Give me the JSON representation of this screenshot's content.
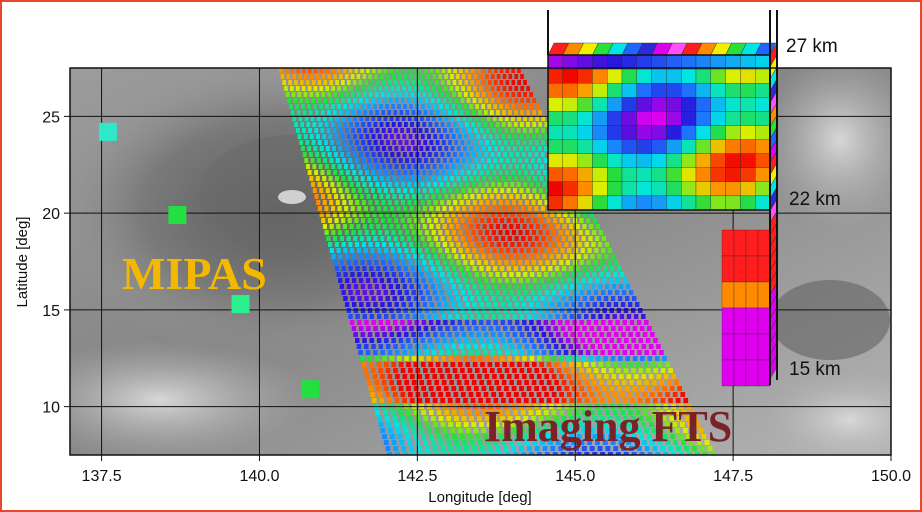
{
  "figure": {
    "x_axis": {
      "label": "Longitude [deg]",
      "range": [
        137.0,
        150.0
      ],
      "ticks": [
        "137.5",
        "140.0",
        "142.5",
        "145.0",
        "147.5",
        "150.0"
      ]
    },
    "y_axis": {
      "label": "Latitude [deg]",
      "range": [
        7.5,
        27.5
      ],
      "ticks": [
        "10",
        "15",
        "20",
        "25"
      ]
    },
    "labels": {
      "mipas": "MIPAS",
      "imaging_fts": "Imaging FTS",
      "alt_top": "27 km",
      "alt_mid": "22 km",
      "alt_low": "15 km"
    },
    "mipas_points": [
      {
        "lon": 137.6,
        "lat": 24.2,
        "color": "#2fe8c8"
      },
      {
        "lon": 138.7,
        "lat": 19.9,
        "color": "#22e040"
      },
      {
        "lon": 139.7,
        "lat": 15.3,
        "color": "#2cf090"
      },
      {
        "lon": 140.8,
        "lat": 10.9,
        "color": "#22e040"
      }
    ],
    "colors": {
      "frame": "#e8472a",
      "mipas_label": "#f5b800",
      "fts_label": "#7a2228",
      "grid": "#111111"
    }
  }
}
